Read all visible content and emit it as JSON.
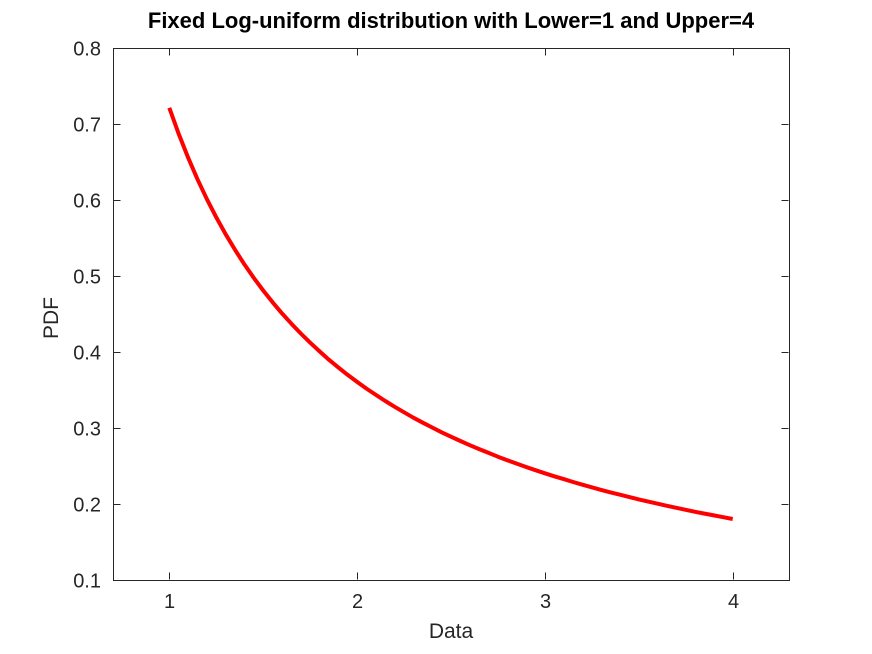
{
  "figure": {
    "title": "Fixed Log-uniform distribution with Lower=1 and Upper=4",
    "xlabel": "Data",
    "ylabel": "PDF"
  },
  "colors": {
    "background": "#ffffff",
    "axis": "#262626",
    "tick_label": "#262626",
    "title": "#000000",
    "curve": "#ff0000"
  },
  "chart_data": {
    "type": "line",
    "title": "Fixed Log-uniform distribution with Lower=1 and Upper=4",
    "xlabel": "Data",
    "ylabel": "PDF",
    "xlim": [
      0.7,
      4.3
    ],
    "ylim": [
      0.1,
      0.8
    ],
    "xticks": [
      1,
      2,
      3,
      4
    ],
    "xtick_labels": [
      "1",
      "2",
      "3",
      "4"
    ],
    "yticks": [
      0.1,
      0.2,
      0.3,
      0.4,
      0.5,
      0.6,
      0.7,
      0.8
    ],
    "ytick_labels": [
      "0.1",
      "0.2",
      "0.3",
      "0.4",
      "0.5",
      "0.6",
      "0.7",
      "0.8"
    ],
    "grid": false,
    "legend": "none",
    "box": true,
    "tick_direction": "in",
    "series": [
      {
        "name": "Log-uniform PDF",
        "color": "#ff0000",
        "line_width": 4,
        "x": [
          1,
          1.05,
          1.1,
          1.15,
          1.2,
          1.25,
          1.3,
          1.35,
          1.4,
          1.45,
          1.5,
          1.55,
          1.6,
          1.65,
          1.7,
          1.75,
          1.8,
          1.85,
          1.9,
          1.95,
          2,
          2.05,
          2.1,
          2.15,
          2.2,
          2.25,
          2.3,
          2.35,
          2.4,
          2.45,
          2.5,
          2.55,
          2.6,
          2.65,
          2.7,
          2.75,
          2.8,
          2.85,
          2.9,
          2.95,
          3,
          3.05,
          3.1,
          3.15,
          3.2,
          3.25,
          3.3,
          3.35,
          3.4,
          3.45,
          3.5,
          3.55,
          3.6,
          3.65,
          3.7,
          3.75,
          3.8,
          3.85,
          3.9,
          3.95,
          4
        ],
        "y": [
          0.7213,
          0.687,
          0.6558,
          0.6273,
          0.6011,
          0.5771,
          0.5549,
          0.5343,
          0.5152,
          0.4975,
          0.4809,
          0.4654,
          0.4508,
          0.4372,
          0.4243,
          0.4122,
          0.4008,
          0.3899,
          0.3797,
          0.3699,
          0.3607,
          0.3519,
          0.3435,
          0.3355,
          0.3279,
          0.3206,
          0.3136,
          0.307,
          0.3006,
          0.2944,
          0.2885,
          0.2829,
          0.2774,
          0.2722,
          0.2672,
          0.2623,
          0.2576,
          0.2531,
          0.2487,
          0.2445,
          0.2404,
          0.2365,
          0.2327,
          0.229,
          0.2254,
          0.222,
          0.2186,
          0.2153,
          0.2122,
          0.2091,
          0.2061,
          0.2032,
          0.2004,
          0.1976,
          0.195,
          0.1924,
          0.1898,
          0.1874,
          0.185,
          0.1826,
          0.1803
        ]
      }
    ]
  }
}
